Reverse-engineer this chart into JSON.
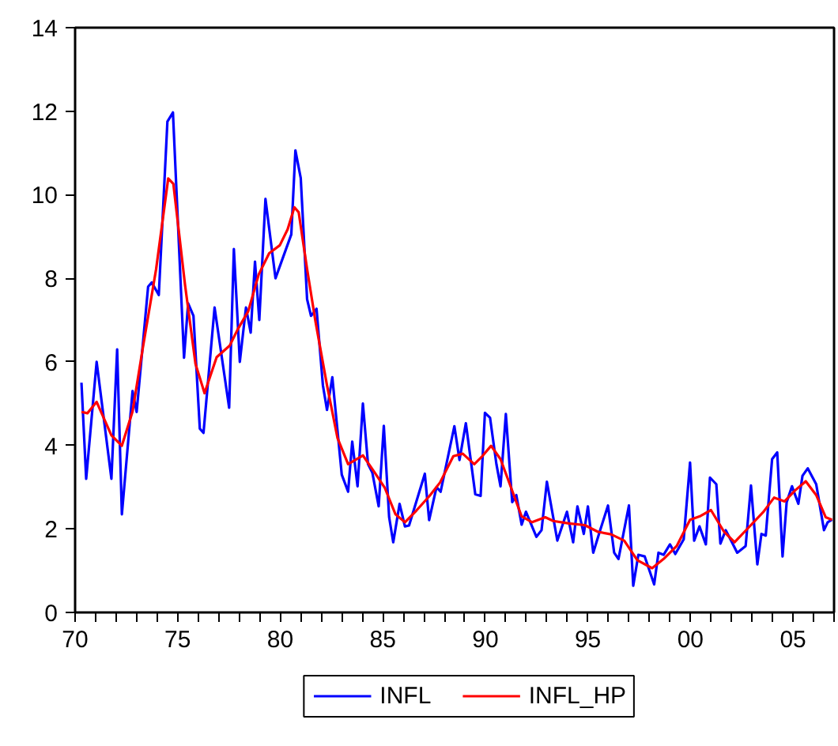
{
  "chart_data": {
    "type": "line",
    "xlim": [
      1970,
      2007
    ],
    "ylim": [
      0,
      14
    ],
    "yticks": [
      0,
      2,
      4,
      6,
      8,
      10,
      12,
      14
    ],
    "xticks": [
      {
        "value": 1970,
        "label": "70"
      },
      {
        "value": 1975,
        "label": "75"
      },
      {
        "value": 1980,
        "label": "80"
      },
      {
        "value": 1985,
        "label": "85"
      },
      {
        "value": 1990,
        "label": "90"
      },
      {
        "value": 1995,
        "label": "95"
      },
      {
        "value": 2000,
        "label": "00"
      },
      {
        "value": 2005,
        "label": "05"
      }
    ],
    "grid": false,
    "legend": "bottom",
    "line_style": "solid",
    "marker": "none",
    "series": [
      {
        "name": "INFL",
        "color": "#0000ff",
        "x": [
          1970.31,
          1970.54,
          1971.05,
          1971.77,
          1972.05,
          1972.28,
          1972.8,
          1973.0,
          1973.56,
          1973.74,
          1974.08,
          1974.5,
          1974.77,
          1975.31,
          1975.51,
          1975.77,
          1976.08,
          1976.26,
          1976.8,
          1977.51,
          1977.74,
          1978.03,
          1978.33,
          1978.56,
          1978.77,
          1978.98,
          1979.28,
          1979.77,
          1980.54,
          1980.74,
          1981.0,
          1981.31,
          1981.5,
          1981.77,
          1982.08,
          1982.28,
          1982.54,
          1983.0,
          1983.31,
          1983.51,
          1983.77,
          1984.03,
          1984.28,
          1984.49,
          1984.8,
          1985.05,
          1985.31,
          1985.51,
          1985.82,
          1986.08,
          1986.28,
          1987.05,
          1987.26,
          1987.62,
          1987.82,
          1988.49,
          1988.74,
          1989.05,
          1989.51,
          1989.77,
          1989.98,
          1990.23,
          1990.54,
          1990.74,
          1991.0,
          1991.31,
          1991.51,
          1991.77,
          1991.98,
          1992.49,
          1992.74,
          1993.0,
          1993.51,
          1993.98,
          1994.28,
          1994.49,
          1994.8,
          1995.0,
          1995.26,
          1995.56,
          1995.98,
          1996.28,
          1996.49,
          1997.0,
          1997.21,
          1997.46,
          1997.77,
          1998.23,
          1998.44,
          1998.69,
          1999.0,
          1999.26,
          1999.67,
          1999.98,
          2000.18,
          2000.44,
          2000.75,
          2000.95,
          2001.26,
          2001.46,
          2001.72,
          2001.98,
          2002.28,
          2002.69,
          2002.95,
          2003.26,
          2003.46,
          2003.67,
          2003.98,
          2004.23,
          2004.49,
          2004.69,
          2004.95,
          2005.26,
          2005.46,
          2005.72,
          2006.13,
          2006.51,
          2006.69,
          2006.9
        ],
        "values": [
          5.5,
          3.2,
          6.0,
          3.2,
          6.3,
          2.35,
          5.3,
          4.8,
          7.8,
          7.9,
          7.6,
          11.75,
          11.97,
          6.1,
          7.4,
          7.1,
          4.4,
          4.3,
          7.3,
          4.9,
          8.7,
          6.0,
          7.3,
          6.7,
          8.4,
          7.0,
          9.9,
          8.0,
          9.05,
          11.06,
          10.4,
          7.5,
          7.1,
          7.27,
          5.44,
          4.85,
          5.63,
          3.3,
          2.89,
          4.09,
          3.02,
          5.0,
          3.55,
          3.35,
          2.54,
          4.47,
          2.28,
          1.68,
          2.6,
          2.06,
          2.08,
          3.32,
          2.21,
          3.0,
          2.89,
          4.46,
          3.65,
          4.53,
          2.83,
          2.79,
          4.78,
          4.66,
          3.55,
          3.02,
          4.75,
          2.64,
          2.81,
          2.1,
          2.41,
          1.81,
          1.97,
          3.13,
          1.72,
          2.41,
          1.68,
          2.54,
          1.88,
          2.54,
          1.43,
          1.91,
          2.56,
          1.43,
          1.28,
          2.56,
          0.64,
          1.38,
          1.34,
          0.67,
          1.43,
          1.38,
          1.63,
          1.4,
          1.75,
          3.59,
          1.72,
          2.06,
          1.63,
          3.23,
          3.07,
          1.65,
          1.97,
          1.72,
          1.43,
          1.59,
          3.04,
          1.15,
          1.88,
          1.84,
          3.67,
          3.83,
          1.34,
          2.64,
          3.02,
          2.6,
          3.27,
          3.45,
          3.07,
          1.97,
          2.16,
          2.22
        ]
      },
      {
        "name": "INFL_HP",
        "color": "#ff0000",
        "x": [
          1970.31,
          1970.6,
          1971.05,
          1971.77,
          1972.28,
          1972.8,
          1973.3,
          1973.95,
          1974.54,
          1974.79,
          1975.36,
          1975.87,
          1976.31,
          1976.9,
          1977.54,
          1977.92,
          1978.44,
          1978.95,
          1979.46,
          1979.98,
          1980.36,
          1980.69,
          1980.9,
          1981.31,
          1981.72,
          1982.28,
          1982.79,
          1983.31,
          1984.03,
          1984.59,
          1985.1,
          1985.62,
          1986.08,
          1986.64,
          1987.28,
          1987.79,
          1988.44,
          1988.9,
          1989.46,
          1989.85,
          1990.28,
          1990.74,
          1991.26,
          1991.77,
          1992.28,
          1992.92,
          1993.31,
          1994.08,
          1994.85,
          1995.49,
          1996.13,
          1996.77,
          1997.41,
          1998.13,
          1998.69,
          1999.33,
          1999.98,
          2000.49,
          2001.0,
          2001.64,
          2002.15,
          2002.79,
          2003.56,
          2004.08,
          2004.59,
          2005.1,
          2005.62,
          2006.13,
          2006.59,
          2006.9
        ],
        "values": [
          4.8,
          4.77,
          5.04,
          4.24,
          3.99,
          4.81,
          6.33,
          8.22,
          10.39,
          10.26,
          7.84,
          5.95,
          5.25,
          6.11,
          6.39,
          6.77,
          7.21,
          8.09,
          8.6,
          8.79,
          9.17,
          9.7,
          9.58,
          8.22,
          6.96,
          5.44,
          4.18,
          3.55,
          3.76,
          3.36,
          2.98,
          2.35,
          2.16,
          2.44,
          2.79,
          3.11,
          3.74,
          3.8,
          3.55,
          3.74,
          3.99,
          3.67,
          2.98,
          2.3,
          2.16,
          2.28,
          2.19,
          2.13,
          2.09,
          1.93,
          1.87,
          1.72,
          1.25,
          1.06,
          1.28,
          1.59,
          2.22,
          2.31,
          2.45,
          1.93,
          1.68,
          2.01,
          2.41,
          2.75,
          2.66,
          2.92,
          3.14,
          2.81,
          2.28,
          2.22
        ]
      }
    ]
  }
}
